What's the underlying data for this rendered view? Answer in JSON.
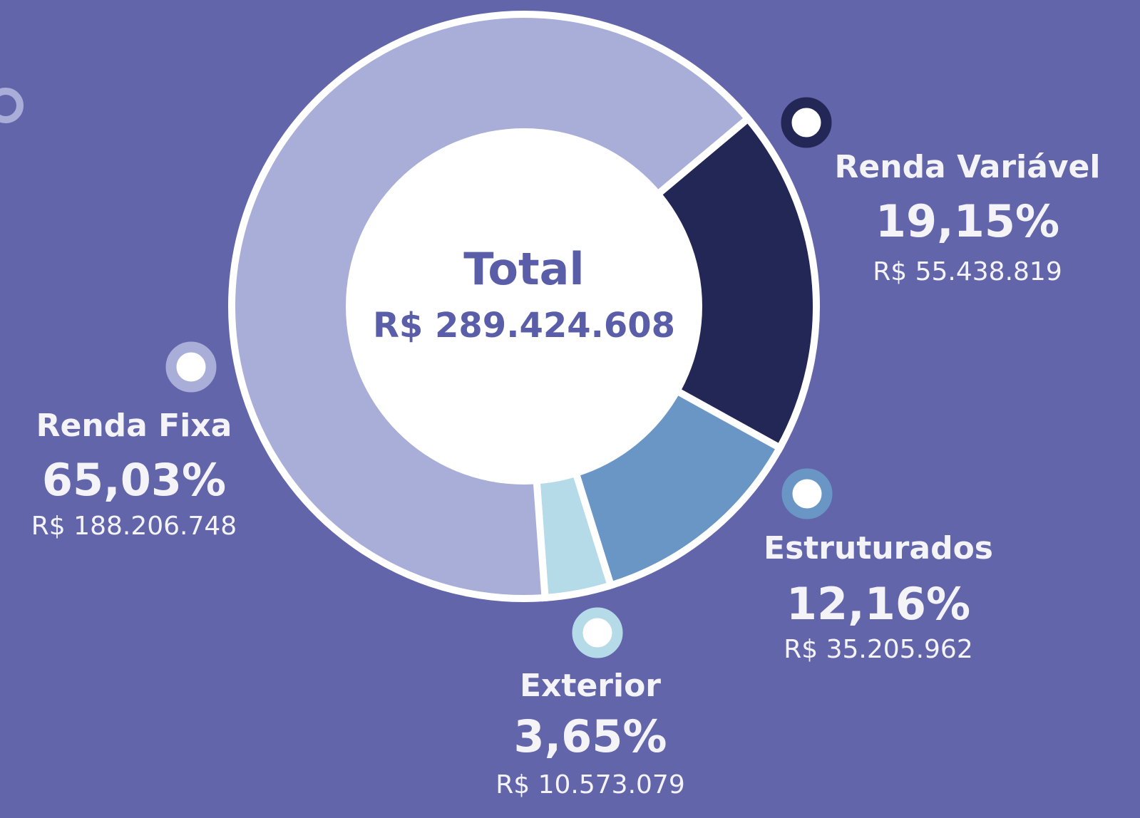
{
  "chart_data": {
    "type": "donut",
    "center_title": "Total",
    "center_label": "R$ 289.424.608",
    "categories": [
      "Renda Variável",
      "Estruturados",
      "Exterior",
      "Renda Fixa"
    ],
    "values": [
      19.15,
      12.16,
      3.65,
      65.03
    ],
    "value_labels": [
      "19,15%",
      "12,16%",
      "3,65%",
      "65,03%"
    ],
    "amount_labels": [
      "R$ 55.438.819",
      "R$ 35.205.962",
      "R$ 10.573.079",
      "R$ 188.206.748"
    ],
    "colors": [
      "#232755",
      "#6a96c6",
      "#b5dbe9",
      "#a8aed8"
    ]
  }
}
